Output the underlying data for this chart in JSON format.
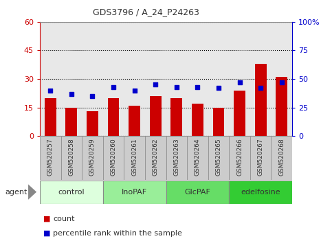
{
  "title": "GDS3796 / A_24_P24263",
  "samples": [
    "GSM520257",
    "GSM520258",
    "GSM520259",
    "GSM520260",
    "GSM520261",
    "GSM520262",
    "GSM520263",
    "GSM520264",
    "GSM520265",
    "GSM520266",
    "GSM520267",
    "GSM520268"
  ],
  "count_values": [
    20,
    15,
    13,
    20,
    16,
    21,
    20,
    17,
    15,
    24,
    38,
    31
  ],
  "percentile_values": [
    40,
    37,
    35,
    43,
    40,
    45,
    43,
    43,
    42,
    47,
    42,
    47
  ],
  "left_ylim": [
    0,
    60
  ],
  "left_yticks": [
    0,
    15,
    30,
    45,
    60
  ],
  "right_ylim": [
    0,
    100
  ],
  "right_yticks": [
    0,
    25,
    50,
    75,
    100
  ],
  "right_yticklabels": [
    "0",
    "25",
    "50",
    "75",
    "100%"
  ],
  "bar_color": "#cc0000",
  "dot_color": "#0000cc",
  "bar_width": 0.55,
  "groups": [
    {
      "label": "control",
      "start": 0,
      "end": 3,
      "color": "#ddffdd"
    },
    {
      "label": "InoPAF",
      "start": 3,
      "end": 6,
      "color": "#99ee99"
    },
    {
      "label": "GlcPAF",
      "start": 6,
      "end": 9,
      "color": "#66dd66"
    },
    {
      "label": "edelfosine",
      "start": 9,
      "end": 12,
      "color": "#33cc33"
    }
  ],
  "legend_count_label": "count",
  "legend_pct_label": "percentile rank within the sample",
  "agent_label": "agent",
  "tick_color_left": "#cc0000",
  "tick_color_right": "#0000cc",
  "plot_bg_color": "#e8e8e8",
  "xtick_bg_color": "#cccccc",
  "group_border_color": "#888888",
  "grid_color": "#000000"
}
